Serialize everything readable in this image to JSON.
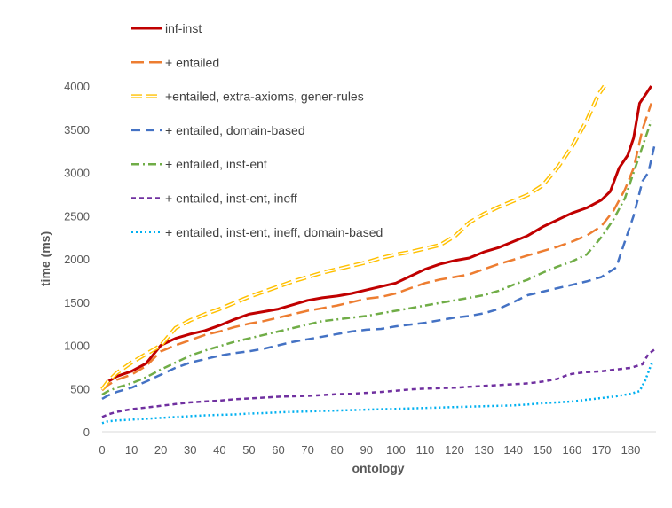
{
  "chart_data": {
    "type": "line",
    "xlabel": "ontology",
    "ylabel": "time (ms)",
    "xlim": [
      0,
      188
    ],
    "ylim": [
      0,
      4000
    ],
    "x_ticks": [
      0,
      10,
      20,
      30,
      40,
      50,
      60,
      70,
      80,
      90,
      100,
      110,
      120,
      130,
      140,
      150,
      160,
      170,
      180
    ],
    "y_ticks": [
      0,
      500,
      1000,
      1500,
      2000,
      2500,
      3000,
      3500,
      4000
    ],
    "grid": false,
    "legend_position": "top-left",
    "series": [
      {
        "name": "inf-inst",
        "color": "#C00000",
        "dash": "solid",
        "points": [
          [
            0,
            500
          ],
          [
            2,
            580
          ],
          [
            5,
            640
          ],
          [
            10,
            700
          ],
          [
            15,
            790
          ],
          [
            20,
            1000
          ],
          [
            25,
            1080
          ],
          [
            30,
            1130
          ],
          [
            35,
            1170
          ],
          [
            40,
            1230
          ],
          [
            45,
            1300
          ],
          [
            50,
            1360
          ],
          [
            55,
            1390
          ],
          [
            60,
            1420
          ],
          [
            65,
            1470
          ],
          [
            70,
            1520
          ],
          [
            75,
            1550
          ],
          [
            80,
            1570
          ],
          [
            85,
            1600
          ],
          [
            90,
            1640
          ],
          [
            95,
            1680
          ],
          [
            100,
            1720
          ],
          [
            105,
            1800
          ],
          [
            110,
            1880
          ],
          [
            115,
            1940
          ],
          [
            120,
            1980
          ],
          [
            125,
            2010
          ],
          [
            130,
            2080
          ],
          [
            135,
            2130
          ],
          [
            140,
            2200
          ],
          [
            145,
            2270
          ],
          [
            150,
            2370
          ],
          [
            155,
            2450
          ],
          [
            160,
            2530
          ],
          [
            165,
            2590
          ],
          [
            170,
            2680
          ],
          [
            173,
            2780
          ],
          [
            176,
            3050
          ],
          [
            179,
            3200
          ],
          [
            181,
            3400
          ],
          [
            183,
            3800
          ],
          [
            185,
            3900
          ],
          [
            187,
            4000
          ]
        ]
      },
      {
        "name": "+ entailed",
        "color": "#ED7D31",
        "dash": "long-dash",
        "points": [
          [
            0,
            480
          ],
          [
            2,
            540
          ],
          [
            5,
            600
          ],
          [
            10,
            660
          ],
          [
            15,
            760
          ],
          [
            20,
            930
          ],
          [
            25,
            1000
          ],
          [
            30,
            1060
          ],
          [
            35,
            1120
          ],
          [
            40,
            1160
          ],
          [
            45,
            1210
          ],
          [
            50,
            1250
          ],
          [
            55,
            1280
          ],
          [
            60,
            1320
          ],
          [
            65,
            1360
          ],
          [
            70,
            1400
          ],
          [
            75,
            1430
          ],
          [
            80,
            1460
          ],
          [
            85,
            1500
          ],
          [
            90,
            1540
          ],
          [
            95,
            1560
          ],
          [
            100,
            1600
          ],
          [
            105,
            1660
          ],
          [
            110,
            1720
          ],
          [
            115,
            1760
          ],
          [
            120,
            1790
          ],
          [
            125,
            1820
          ],
          [
            130,
            1880
          ],
          [
            135,
            1940
          ],
          [
            140,
            1990
          ],
          [
            145,
            2040
          ],
          [
            150,
            2090
          ],
          [
            155,
            2140
          ],
          [
            160,
            2200
          ],
          [
            165,
            2270
          ],
          [
            170,
            2380
          ],
          [
            174,
            2550
          ],
          [
            178,
            2800
          ],
          [
            181,
            3050
          ],
          [
            184,
            3500
          ],
          [
            187,
            3800
          ]
        ]
      },
      {
        "name": "+entailed, extra-axioms, gener-rules",
        "color": "#FFC000",
        "dash": "double",
        "points": [
          [
            0,
            490
          ],
          [
            2,
            580
          ],
          [
            5,
            680
          ],
          [
            10,
            800
          ],
          [
            15,
            900
          ],
          [
            20,
            1000
          ],
          [
            25,
            1200
          ],
          [
            30,
            1290
          ],
          [
            35,
            1360
          ],
          [
            40,
            1420
          ],
          [
            45,
            1490
          ],
          [
            50,
            1560
          ],
          [
            55,
            1620
          ],
          [
            60,
            1680
          ],
          [
            65,
            1740
          ],
          [
            70,
            1790
          ],
          [
            75,
            1840
          ],
          [
            80,
            1880
          ],
          [
            85,
            1920
          ],
          [
            90,
            1960
          ],
          [
            95,
            2010
          ],
          [
            100,
            2050
          ],
          [
            105,
            2080
          ],
          [
            110,
            2120
          ],
          [
            115,
            2160
          ],
          [
            120,
            2260
          ],
          [
            125,
            2420
          ],
          [
            130,
            2520
          ],
          [
            135,
            2600
          ],
          [
            140,
            2670
          ],
          [
            145,
            2740
          ],
          [
            150,
            2850
          ],
          [
            155,
            3050
          ],
          [
            160,
            3300
          ],
          [
            165,
            3600
          ],
          [
            169,
            3900
          ],
          [
            171,
            4000
          ]
        ]
      },
      {
        "name": "+ entailed, domain-based",
        "color": "#4472C4",
        "dash": "dash",
        "points": [
          [
            0,
            380
          ],
          [
            2,
            420
          ],
          [
            5,
            460
          ],
          [
            10,
            510
          ],
          [
            15,
            580
          ],
          [
            20,
            660
          ],
          [
            25,
            740
          ],
          [
            30,
            800
          ],
          [
            35,
            840
          ],
          [
            40,
            880
          ],
          [
            45,
            910
          ],
          [
            50,
            930
          ],
          [
            55,
            960
          ],
          [
            60,
            1000
          ],
          [
            65,
            1040
          ],
          [
            70,
            1070
          ],
          [
            75,
            1100
          ],
          [
            80,
            1130
          ],
          [
            85,
            1160
          ],
          [
            90,
            1180
          ],
          [
            95,
            1190
          ],
          [
            100,
            1220
          ],
          [
            105,
            1240
          ],
          [
            110,
            1260
          ],
          [
            115,
            1290
          ],
          [
            120,
            1320
          ],
          [
            125,
            1340
          ],
          [
            130,
            1370
          ],
          [
            135,
            1420
          ],
          [
            140,
            1500
          ],
          [
            145,
            1580
          ],
          [
            150,
            1620
          ],
          [
            155,
            1660
          ],
          [
            160,
            1700
          ],
          [
            165,
            1740
          ],
          [
            170,
            1790
          ],
          [
            175,
            1900
          ],
          [
            178,
            2200
          ],
          [
            181,
            2500
          ],
          [
            184,
            2900
          ],
          [
            186,
            3000
          ],
          [
            188,
            3300
          ]
        ]
      },
      {
        "name": "+ entailed, inst-ent",
        "color": "#70AD47",
        "dash": "dash-dot",
        "points": [
          [
            0,
            430
          ],
          [
            2,
            470
          ],
          [
            5,
            510
          ],
          [
            10,
            560
          ],
          [
            15,
            630
          ],
          [
            20,
            720
          ],
          [
            25,
            800
          ],
          [
            30,
            880
          ],
          [
            35,
            940
          ],
          [
            40,
            990
          ],
          [
            45,
            1040
          ],
          [
            50,
            1080
          ],
          [
            55,
            1120
          ],
          [
            60,
            1160
          ],
          [
            65,
            1200
          ],
          [
            70,
            1240
          ],
          [
            75,
            1280
          ],
          [
            80,
            1300
          ],
          [
            85,
            1320
          ],
          [
            90,
            1340
          ],
          [
            95,
            1370
          ],
          [
            100,
            1400
          ],
          [
            105,
            1430
          ],
          [
            110,
            1460
          ],
          [
            115,
            1490
          ],
          [
            120,
            1520
          ],
          [
            125,
            1550
          ],
          [
            130,
            1580
          ],
          [
            135,
            1630
          ],
          [
            140,
            1700
          ],
          [
            145,
            1760
          ],
          [
            150,
            1840
          ],
          [
            155,
            1910
          ],
          [
            160,
            1970
          ],
          [
            165,
            2050
          ],
          [
            170,
            2250
          ],
          [
            174,
            2450
          ],
          [
            178,
            2700
          ],
          [
            182,
            3100
          ],
          [
            185,
            3400
          ],
          [
            187,
            3600
          ]
        ]
      },
      {
        "name": "+ entailed, inst-ent, ineff",
        "color": "#7030A0",
        "dash": "short-dash",
        "points": [
          [
            0,
            170
          ],
          [
            2,
            200
          ],
          [
            5,
            230
          ],
          [
            10,
            260
          ],
          [
            15,
            280
          ],
          [
            20,
            300
          ],
          [
            25,
            320
          ],
          [
            30,
            340
          ],
          [
            35,
            350
          ],
          [
            40,
            360
          ],
          [
            45,
            375
          ],
          [
            50,
            385
          ],
          [
            55,
            395
          ],
          [
            60,
            405
          ],
          [
            65,
            410
          ],
          [
            70,
            415
          ],
          [
            75,
            425
          ],
          [
            80,
            435
          ],
          [
            85,
            440
          ],
          [
            90,
            450
          ],
          [
            95,
            460
          ],
          [
            100,
            475
          ],
          [
            105,
            490
          ],
          [
            110,
            500
          ],
          [
            115,
            505
          ],
          [
            120,
            510
          ],
          [
            125,
            520
          ],
          [
            130,
            530
          ],
          [
            135,
            540
          ],
          [
            140,
            550
          ],
          [
            145,
            560
          ],
          [
            150,
            580
          ],
          [
            155,
            610
          ],
          [
            158,
            650
          ],
          [
            160,
            670
          ],
          [
            165,
            690
          ],
          [
            170,
            700
          ],
          [
            175,
            720
          ],
          [
            180,
            740
          ],
          [
            184,
            780
          ],
          [
            186,
            900
          ],
          [
            188,
            950
          ]
        ]
      },
      {
        "name": "+ entailed, inst-ent, ineff, domain-based",
        "color": "#00B0F0",
        "dash": "dot",
        "points": [
          [
            0,
            100
          ],
          [
            2,
            120
          ],
          [
            5,
            130
          ],
          [
            10,
            140
          ],
          [
            15,
            150
          ],
          [
            20,
            160
          ],
          [
            25,
            170
          ],
          [
            30,
            180
          ],
          [
            35,
            190
          ],
          [
            40,
            195
          ],
          [
            45,
            200
          ],
          [
            50,
            210
          ],
          [
            55,
            215
          ],
          [
            60,
            225
          ],
          [
            65,
            230
          ],
          [
            70,
            235
          ],
          [
            75,
            240
          ],
          [
            80,
            245
          ],
          [
            85,
            250
          ],
          [
            90,
            255
          ],
          [
            95,
            260
          ],
          [
            100,
            265
          ],
          [
            105,
            270
          ],
          [
            110,
            275
          ],
          [
            115,
            280
          ],
          [
            120,
            285
          ],
          [
            125,
            290
          ],
          [
            130,
            295
          ],
          [
            135,
            300
          ],
          [
            140,
            305
          ],
          [
            145,
            315
          ],
          [
            150,
            330
          ],
          [
            155,
            340
          ],
          [
            160,
            350
          ],
          [
            165,
            370
          ],
          [
            170,
            390
          ],
          [
            175,
            410
          ],
          [
            180,
            440
          ],
          [
            183,
            470
          ],
          [
            185,
            600
          ],
          [
            187,
            780
          ],
          [
            188,
            800
          ]
        ]
      }
    ]
  }
}
